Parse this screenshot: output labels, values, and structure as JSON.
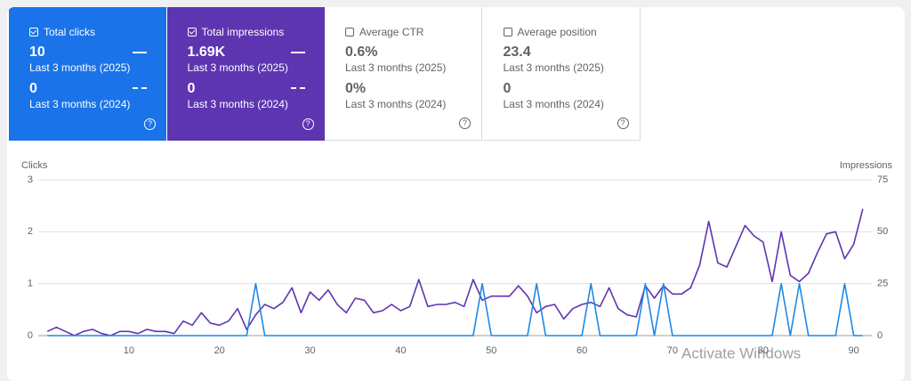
{
  "cards": [
    {
      "label": "Total clicks",
      "value": "10",
      "period": "Last 3 months (2025)",
      "prev_value": "0",
      "prev_period": "Last 3 months (2024)",
      "checked": true,
      "color": "#1a73e8"
    },
    {
      "label": "Total impressions",
      "value": "1.69K",
      "period": "Last 3 months (2025)",
      "prev_value": "0",
      "prev_period": "Last 3 months (2024)",
      "checked": true,
      "color": "#5e35b1"
    },
    {
      "label": "Average CTR",
      "value": "0.6%",
      "period": "Last 3 months (2025)",
      "prev_value": "0%",
      "prev_period": "Last 3 months (2024)",
      "checked": false,
      "color": "#ffffff"
    },
    {
      "label": "Average position",
      "value": "23.4",
      "period": "Last 3 months (2025)",
      "prev_value": "0",
      "prev_period": "Last 3 months (2024)",
      "checked": false,
      "color": "#ffffff"
    }
  ],
  "watermark": "Activate Windows",
  "chart_data": {
    "type": "line",
    "y_label": "Clicks",
    "y2_label": "Impressions",
    "x": [
      1,
      2,
      3,
      4,
      5,
      6,
      7,
      8,
      9,
      10,
      11,
      12,
      13,
      14,
      15,
      16,
      17,
      18,
      19,
      20,
      21,
      22,
      23,
      24,
      25,
      26,
      27,
      28,
      29,
      30,
      31,
      32,
      33,
      34,
      35,
      36,
      37,
      38,
      39,
      40,
      41,
      42,
      43,
      44,
      45,
      46,
      47,
      48,
      49,
      50,
      51,
      52,
      53,
      54,
      55,
      56,
      57,
      58,
      59,
      60,
      61,
      62,
      63,
      64,
      65,
      66,
      67,
      68,
      69,
      70,
      71,
      72,
      73,
      74,
      75,
      76,
      77,
      78,
      79,
      80,
      81,
      82,
      83,
      84,
      85,
      86,
      87,
      88,
      89,
      90,
      91
    ],
    "xlim": [
      0,
      92
    ],
    "xticks": [
      10,
      20,
      30,
      40,
      50,
      60,
      70,
      80,
      90
    ],
    "ylim": [
      0,
      3
    ],
    "yticks": [
      0,
      1,
      2,
      3
    ],
    "y2lim": [
      0,
      75
    ],
    "y2ticks": [
      0,
      25,
      50,
      75
    ],
    "grid": true,
    "series": [
      {
        "name": "Clicks",
        "color": "#1e88e5",
        "values": [
          0,
          0,
          0,
          0,
          0,
          0,
          0,
          0,
          0,
          0,
          0,
          0,
          0,
          0,
          0,
          0,
          0,
          0,
          0,
          0,
          0,
          0,
          0,
          1,
          0,
          0,
          0,
          0,
          0,
          0,
          0,
          0,
          0,
          0,
          0,
          0,
          0,
          0,
          0,
          0,
          0,
          0,
          0,
          0,
          0,
          0,
          0,
          0,
          1,
          0,
          0,
          0,
          0,
          0,
          1,
          0,
          0,
          0,
          0,
          0,
          1,
          0,
          0,
          0,
          0,
          0,
          1,
          0,
          1,
          0,
          0,
          0,
          0,
          0,
          0,
          0,
          0,
          0,
          0,
          0,
          0,
          1,
          0,
          1,
          0,
          0,
          0,
          0,
          1,
          0,
          0
        ]
      },
      {
        "name": "Impressions",
        "color": "#5e35b1",
        "axis": "y2",
        "values": [
          2,
          4,
          2,
          0,
          2,
          3,
          1,
          0,
          2,
          2,
          1,
          3,
          2,
          2,
          1,
          7,
          5,
          11,
          6,
          5,
          7,
          13,
          3,
          10,
          15,
          13,
          16,
          23,
          11,
          21,
          17,
          22,
          15,
          11,
          18,
          17,
          11,
          12,
          15,
          12,
          14,
          27,
          14,
          15,
          15,
          16,
          14,
          27,
          17,
          19,
          19,
          19,
          24,
          19,
          11,
          14,
          15,
          8,
          13,
          15,
          16,
          14,
          23,
          13,
          10,
          9,
          24,
          18,
          24,
          20,
          20,
          23,
          34,
          55,
          35,
          33,
          43,
          53,
          48,
          45,
          26,
          50,
          29,
          26,
          30,
          40,
          49,
          50,
          37,
          44,
          61
        ]
      }
    ]
  }
}
